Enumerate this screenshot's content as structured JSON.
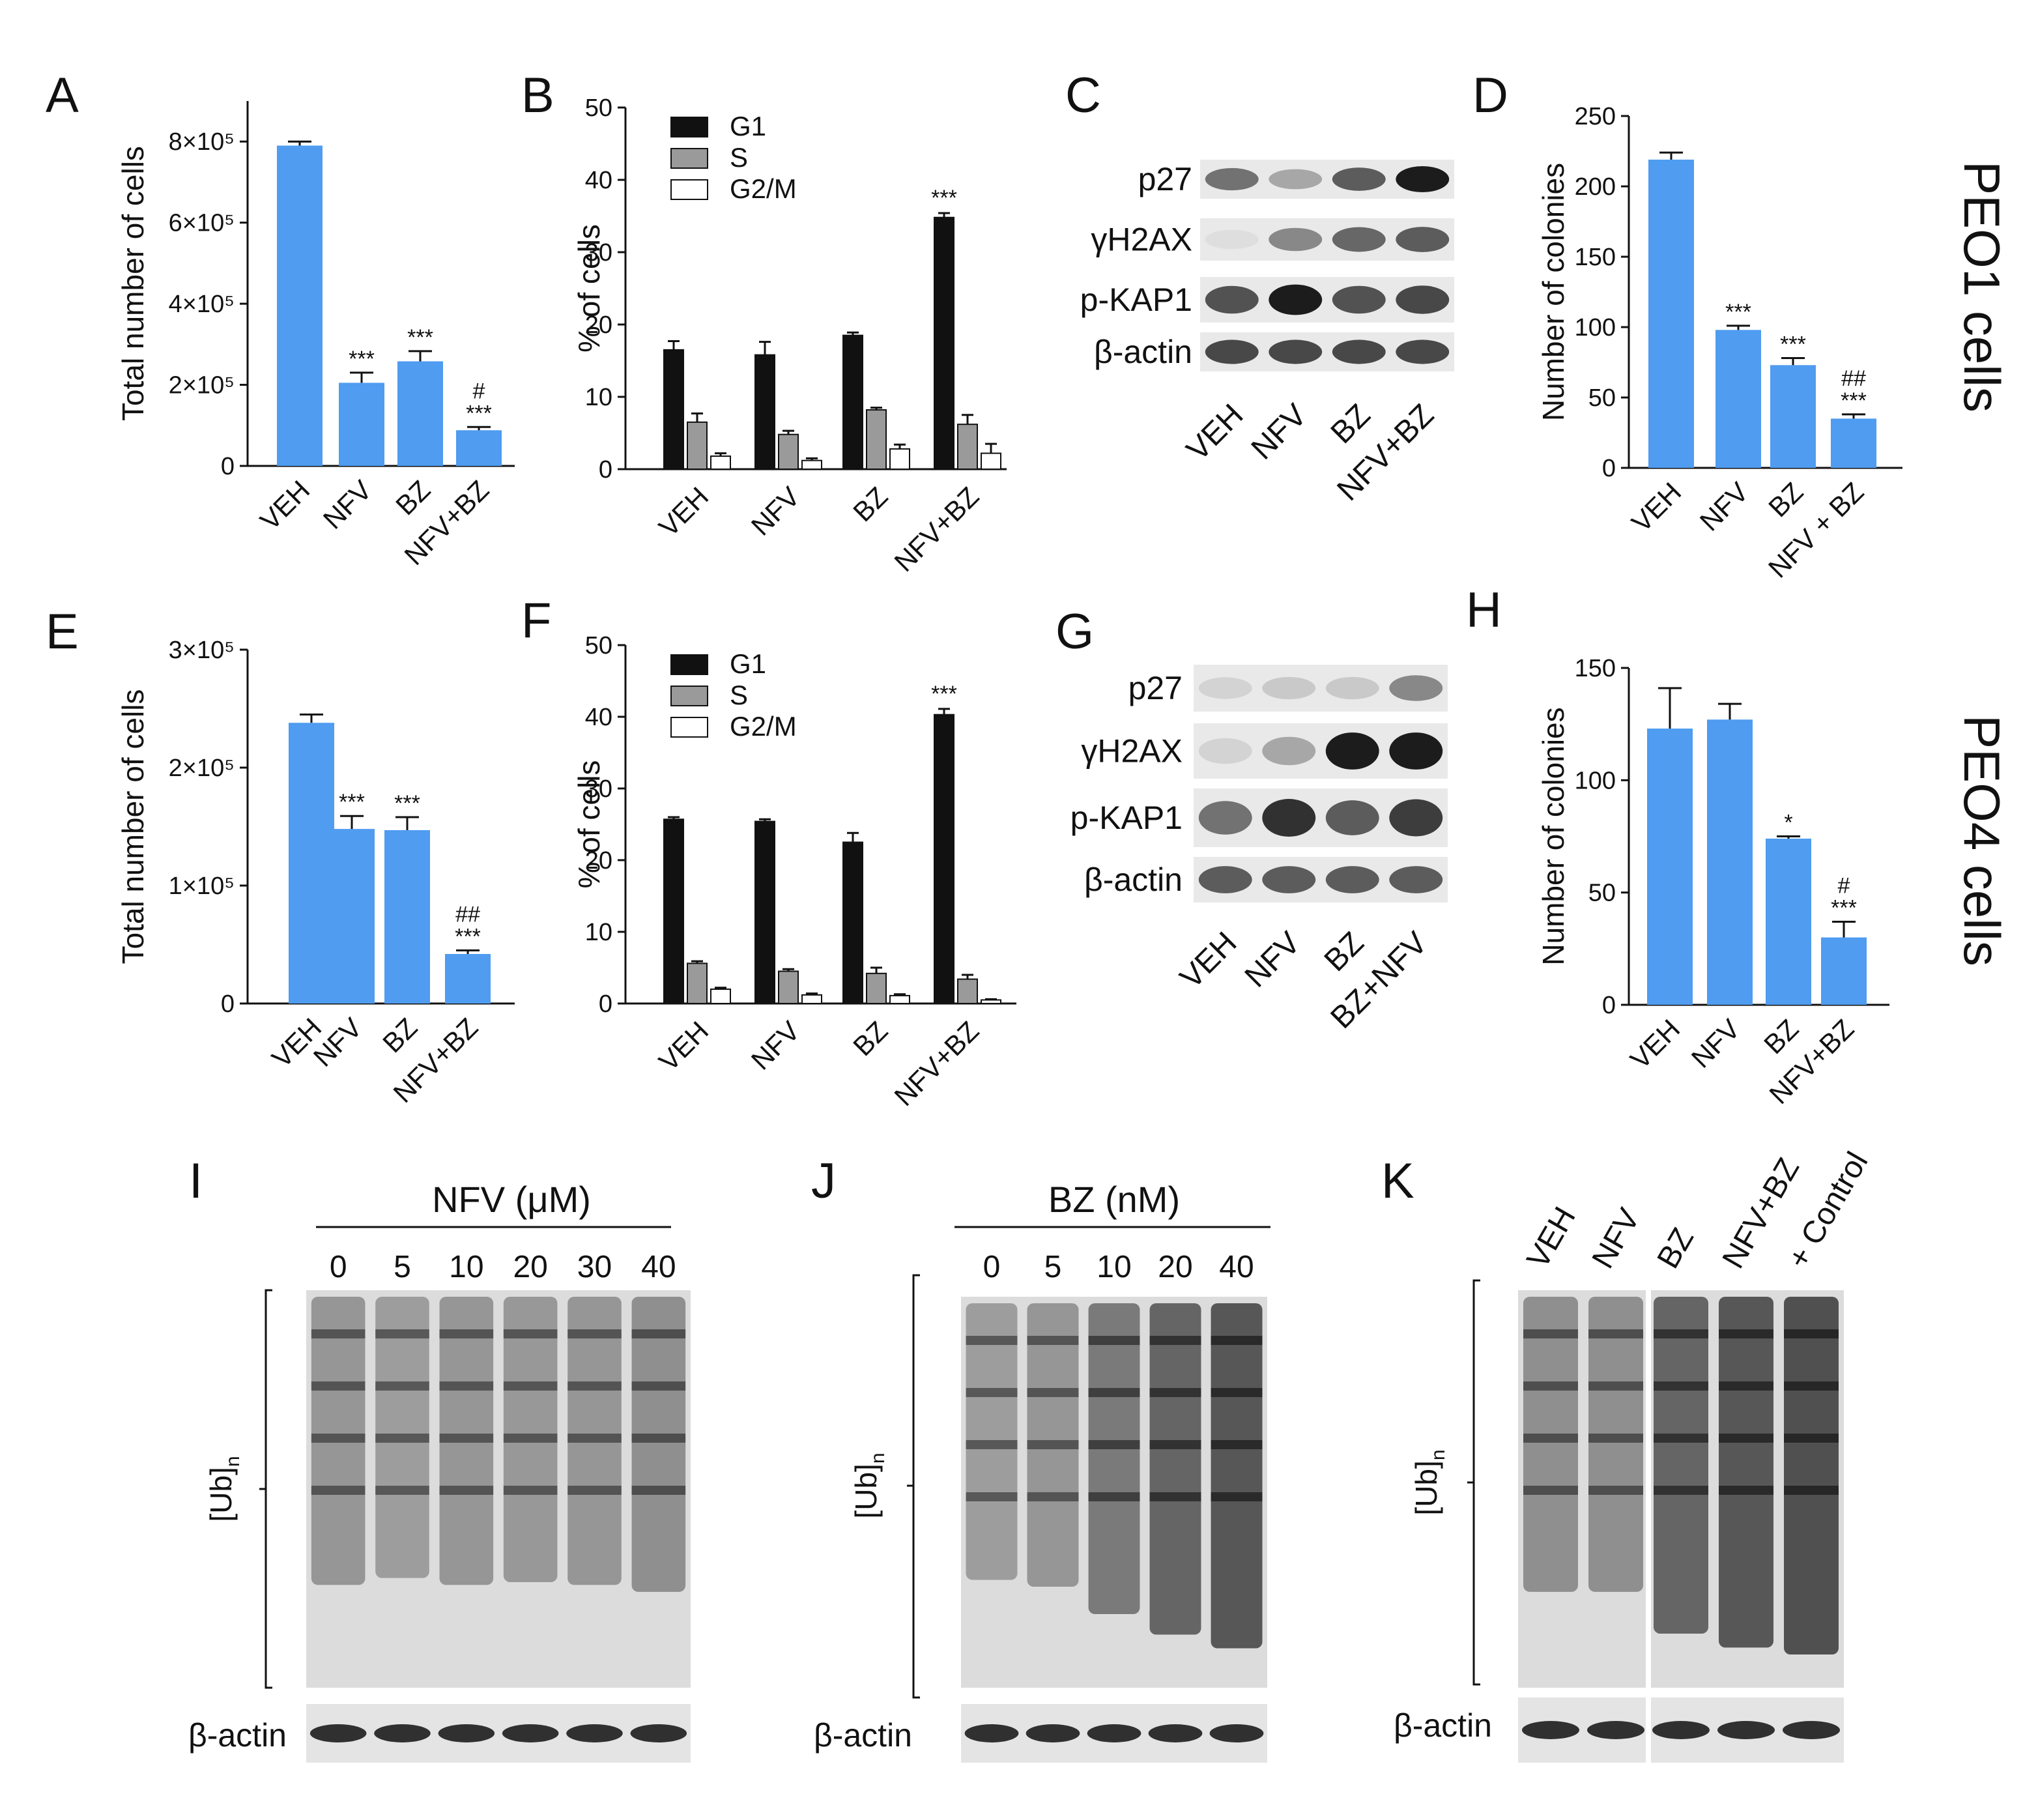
{
  "figure": {
    "panels": {
      "A": "A",
      "B": "B",
      "C": "C",
      "D": "D",
      "E": "E",
      "F": "F",
      "G": "G",
      "H": "H",
      "I": "I",
      "J": "J",
      "K": "K"
    },
    "row_labels": {
      "peo1": "PEO1 cells",
      "peo4": "PEO4 cells"
    }
  },
  "colors": {
    "bar": "#4f9cf0",
    "g1": "#111111",
    "s": "#9a9a9a",
    "g2m": "#ffffff"
  },
  "chart_data": [
    {
      "panel": "A",
      "type": "bar",
      "categories": [
        "VEH",
        "NFV",
        "BZ",
        "NFV+BZ"
      ],
      "values": [
        790000,
        205000,
        258000,
        88000
      ],
      "errors": [
        10000,
        25000,
        25000,
        8000
      ],
      "ylabel": "Total number of cells",
      "ylim": [
        0,
        900000
      ],
      "yticks": [
        0,
        200000,
        400000,
        600000,
        800000
      ],
      "yticklabels": [
        "0",
        "2×10⁵",
        "4×10⁵",
        "6×10⁵",
        "8×10⁵"
      ],
      "annotations": [
        "",
        "***",
        "***",
        "#\n***"
      ]
    },
    {
      "panel": "B",
      "type": "bar",
      "categories": [
        "VEH",
        "NFV",
        "BZ",
        "NFV+BZ"
      ],
      "series": [
        {
          "name": "G1",
          "values": [
            16.5,
            15.8,
            18.5,
            34.8
          ],
          "errors": [
            1.2,
            1.8,
            0.4,
            0.6
          ]
        },
        {
          "name": "S",
          "values": [
            6.5,
            4.8,
            8.2,
            6.2
          ],
          "errors": [
            1.2,
            0.5,
            0.3,
            1.3
          ]
        },
        {
          "name": "G2/M",
          "values": [
            1.8,
            1.2,
            2.8,
            2.2
          ],
          "errors": [
            0.4,
            0.3,
            0.6,
            1.3
          ]
        }
      ],
      "ylabel": "% of cells",
      "ylim": [
        0,
        50
      ],
      "yticks": [
        0,
        10,
        20,
        30,
        40,
        50
      ],
      "annotations": [
        "",
        "",
        "",
        "***"
      ],
      "legend": "top-left"
    },
    {
      "panel": "D",
      "type": "bar",
      "categories": [
        "VEH",
        "NFV",
        "BZ",
        "NFV + BZ"
      ],
      "values": [
        219,
        98,
        73,
        35
      ],
      "errors": [
        5,
        3,
        5,
        3
      ],
      "ylabel": "Number of colonies",
      "ylim": [
        0,
        250
      ],
      "yticks": [
        0,
        50,
        100,
        150,
        200,
        250
      ],
      "annotations": [
        "",
        "***",
        "***",
        "##\n***"
      ]
    },
    {
      "panel": "E",
      "type": "bar",
      "categories": [
        "VEH",
        "NFV",
        "BZ",
        "NFV+BZ"
      ],
      "values": [
        238000,
        148000,
        147000,
        42000
      ],
      "errors": [
        7000,
        11000,
        11000,
        3000
      ],
      "ylabel": "Total number of cells",
      "ylim": [
        0,
        300000
      ],
      "yticks": [
        0,
        100000,
        200000,
        300000
      ],
      "yticklabels": [
        "0",
        "1×10⁵",
        "2×10⁵",
        "3×10⁵"
      ],
      "annotations": [
        "",
        "***",
        "***",
        "##\n***"
      ]
    },
    {
      "panel": "F",
      "type": "bar",
      "categories": [
        "VEH",
        "NFV",
        "BZ",
        "NFV+BZ"
      ],
      "series": [
        {
          "name": "G1",
          "values": [
            25.7,
            25.4,
            22.5,
            40.3
          ],
          "errors": [
            0.3,
            0.3,
            1.3,
            0.8
          ]
        },
        {
          "name": "S",
          "values": [
            5.6,
            4.5,
            4.2,
            3.4
          ],
          "errors": [
            0.3,
            0.3,
            0.8,
            0.6
          ]
        },
        {
          "name": "G2/M",
          "values": [
            2.0,
            1.2,
            1.1,
            0.5
          ],
          "errors": [
            0.2,
            0.2,
            0.2,
            0.1
          ]
        }
      ],
      "ylabel": "% of cells",
      "ylim": [
        0,
        50
      ],
      "yticks": [
        0,
        10,
        20,
        30,
        40,
        50
      ],
      "annotations": [
        "",
        "",
        "",
        "***"
      ],
      "legend": "top-left"
    },
    {
      "panel": "H",
      "type": "bar",
      "categories": [
        "VEH",
        "NFV",
        "BZ",
        "NFV+BZ"
      ],
      "values": [
        123,
        127,
        74,
        30
      ],
      "errors": [
        18,
        7,
        1,
        7
      ],
      "ylabel": "Number of colonies",
      "ylim": [
        0,
        150
      ],
      "yticks": [
        0,
        50,
        100,
        150
      ],
      "annotations": [
        "",
        "",
        "*",
        "#\n***"
      ]
    }
  ],
  "blots": {
    "C": {
      "labels": [
        "p27",
        "γH2AX",
        "p-KAP1",
        "β-actin"
      ],
      "lanes": [
        "VEH",
        "NFV",
        "BZ",
        "NFV+BZ"
      ],
      "intensity": [
        [
          0.55,
          0.3,
          0.65,
          0.95
        ],
        [
          0.05,
          0.45,
          0.6,
          0.65
        ],
        [
          0.7,
          0.95,
          0.7,
          0.75
        ],
        [
          0.75,
          0.75,
          0.75,
          0.75
        ]
      ]
    },
    "G": {
      "labels": [
        "p27",
        "γH2AX",
        "p-KAP1",
        "β-actin"
      ],
      "lanes": [
        "VEH",
        "NFV",
        "BZ",
        "BZ+NFV"
      ],
      "intensity": [
        [
          0.1,
          0.15,
          0.15,
          0.45
        ],
        [
          0.1,
          0.3,
          0.95,
          0.95
        ],
        [
          0.55,
          0.85,
          0.65,
          0.8
        ],
        [
          0.65,
          0.65,
          0.65,
          0.65
        ]
      ]
    },
    "I": {
      "header": "NFV (μM)",
      "lanes": [
        "0",
        "5",
        "10",
        "20",
        "30",
        "40"
      ],
      "ub_label": "[Ub]",
      "ub_sub": "n",
      "actin_label": "β-actin",
      "intensity": [
        0.5,
        0.45,
        0.5,
        0.48,
        0.5,
        0.55
      ]
    },
    "J": {
      "header": "BZ (nM)",
      "lanes": [
        "0",
        "5",
        "10",
        "20",
        "40"
      ],
      "ub_label": "[Ub]",
      "ub_sub": "n",
      "actin_label": "β-actin",
      "intensity": [
        0.45,
        0.5,
        0.7,
        0.85,
        0.95
      ]
    },
    "K": {
      "lanes": [
        "VEH",
        "NFV",
        "BZ",
        "NFV+BZ",
        "+ Control"
      ],
      "ub_label": "[Ub]",
      "ub_sub": "n",
      "actin_label": "β-actin",
      "intensity": [
        0.55,
        0.55,
        0.85,
        0.95,
        1.0
      ]
    }
  }
}
